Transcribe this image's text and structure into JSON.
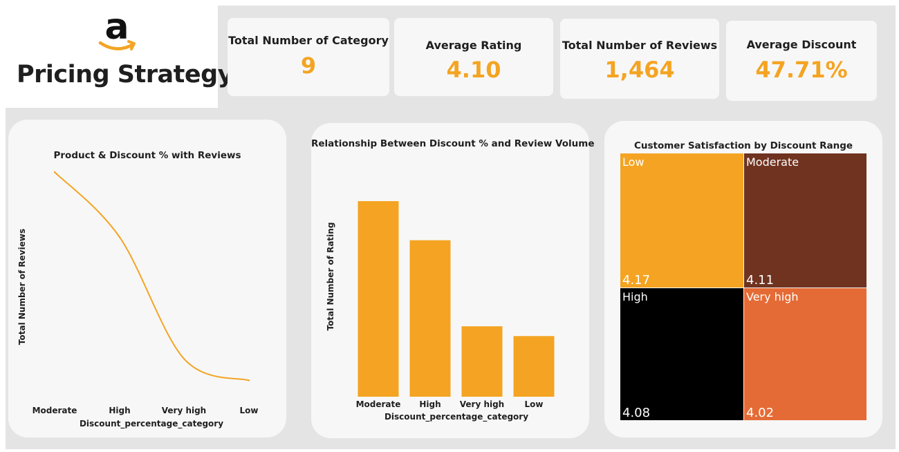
{
  "header": {
    "logo_glyph": "a",
    "title": "Pricing Strategy"
  },
  "kpis": [
    {
      "label": "Total Number of Category",
      "value": "9"
    },
    {
      "label": "Average Rating",
      "value": "4.10"
    },
    {
      "label": "Total Number of Reviews",
      "value": "1,464"
    },
    {
      "label": "Average Discount",
      "value": "47.71%"
    }
  ],
  "colors": {
    "accent": "#f4a422",
    "moderate": "#70331f",
    "high": "#000000",
    "very_high": "#e56b36",
    "panel": "#f7f7f7",
    "backdrop": "#e4e4e4"
  },
  "chart_data": [
    {
      "type": "line",
      "title": "Product & Discount % with Reviews",
      "xlabel": "Discount_percentage_category",
      "ylabel": "Total Number of Reviews",
      "categories": [
        "Moderate",
        "High",
        "Very high",
        "Low"
      ],
      "values": [
        100,
        70,
        14,
        4
      ],
      "ylim": [
        0,
        100
      ],
      "grid": false
    },
    {
      "type": "bar",
      "title": "Relationship Between Discount % and Review Volume",
      "xlabel": "Discount_percentage_category",
      "ylabel": "Total Number of Rating",
      "categories": [
        "Moderate",
        "High",
        "Very high",
        "Low"
      ],
      "values": [
        100,
        80,
        36,
        31
      ],
      "ylim": [
        0,
        100
      ],
      "grid": false
    },
    {
      "type": "heatmap",
      "title": "Customer Satisfaction by Discount Range",
      "tiles": [
        {
          "label": "Low",
          "value": "4.17",
          "color": "#f4a422"
        },
        {
          "label": "Moderate",
          "value": "4.11",
          "color": "#70331f"
        },
        {
          "label": "High",
          "value": "4.08",
          "color": "#000000"
        },
        {
          "label": "Very high",
          "value": "4.02",
          "color": "#e56b36"
        }
      ]
    }
  ]
}
